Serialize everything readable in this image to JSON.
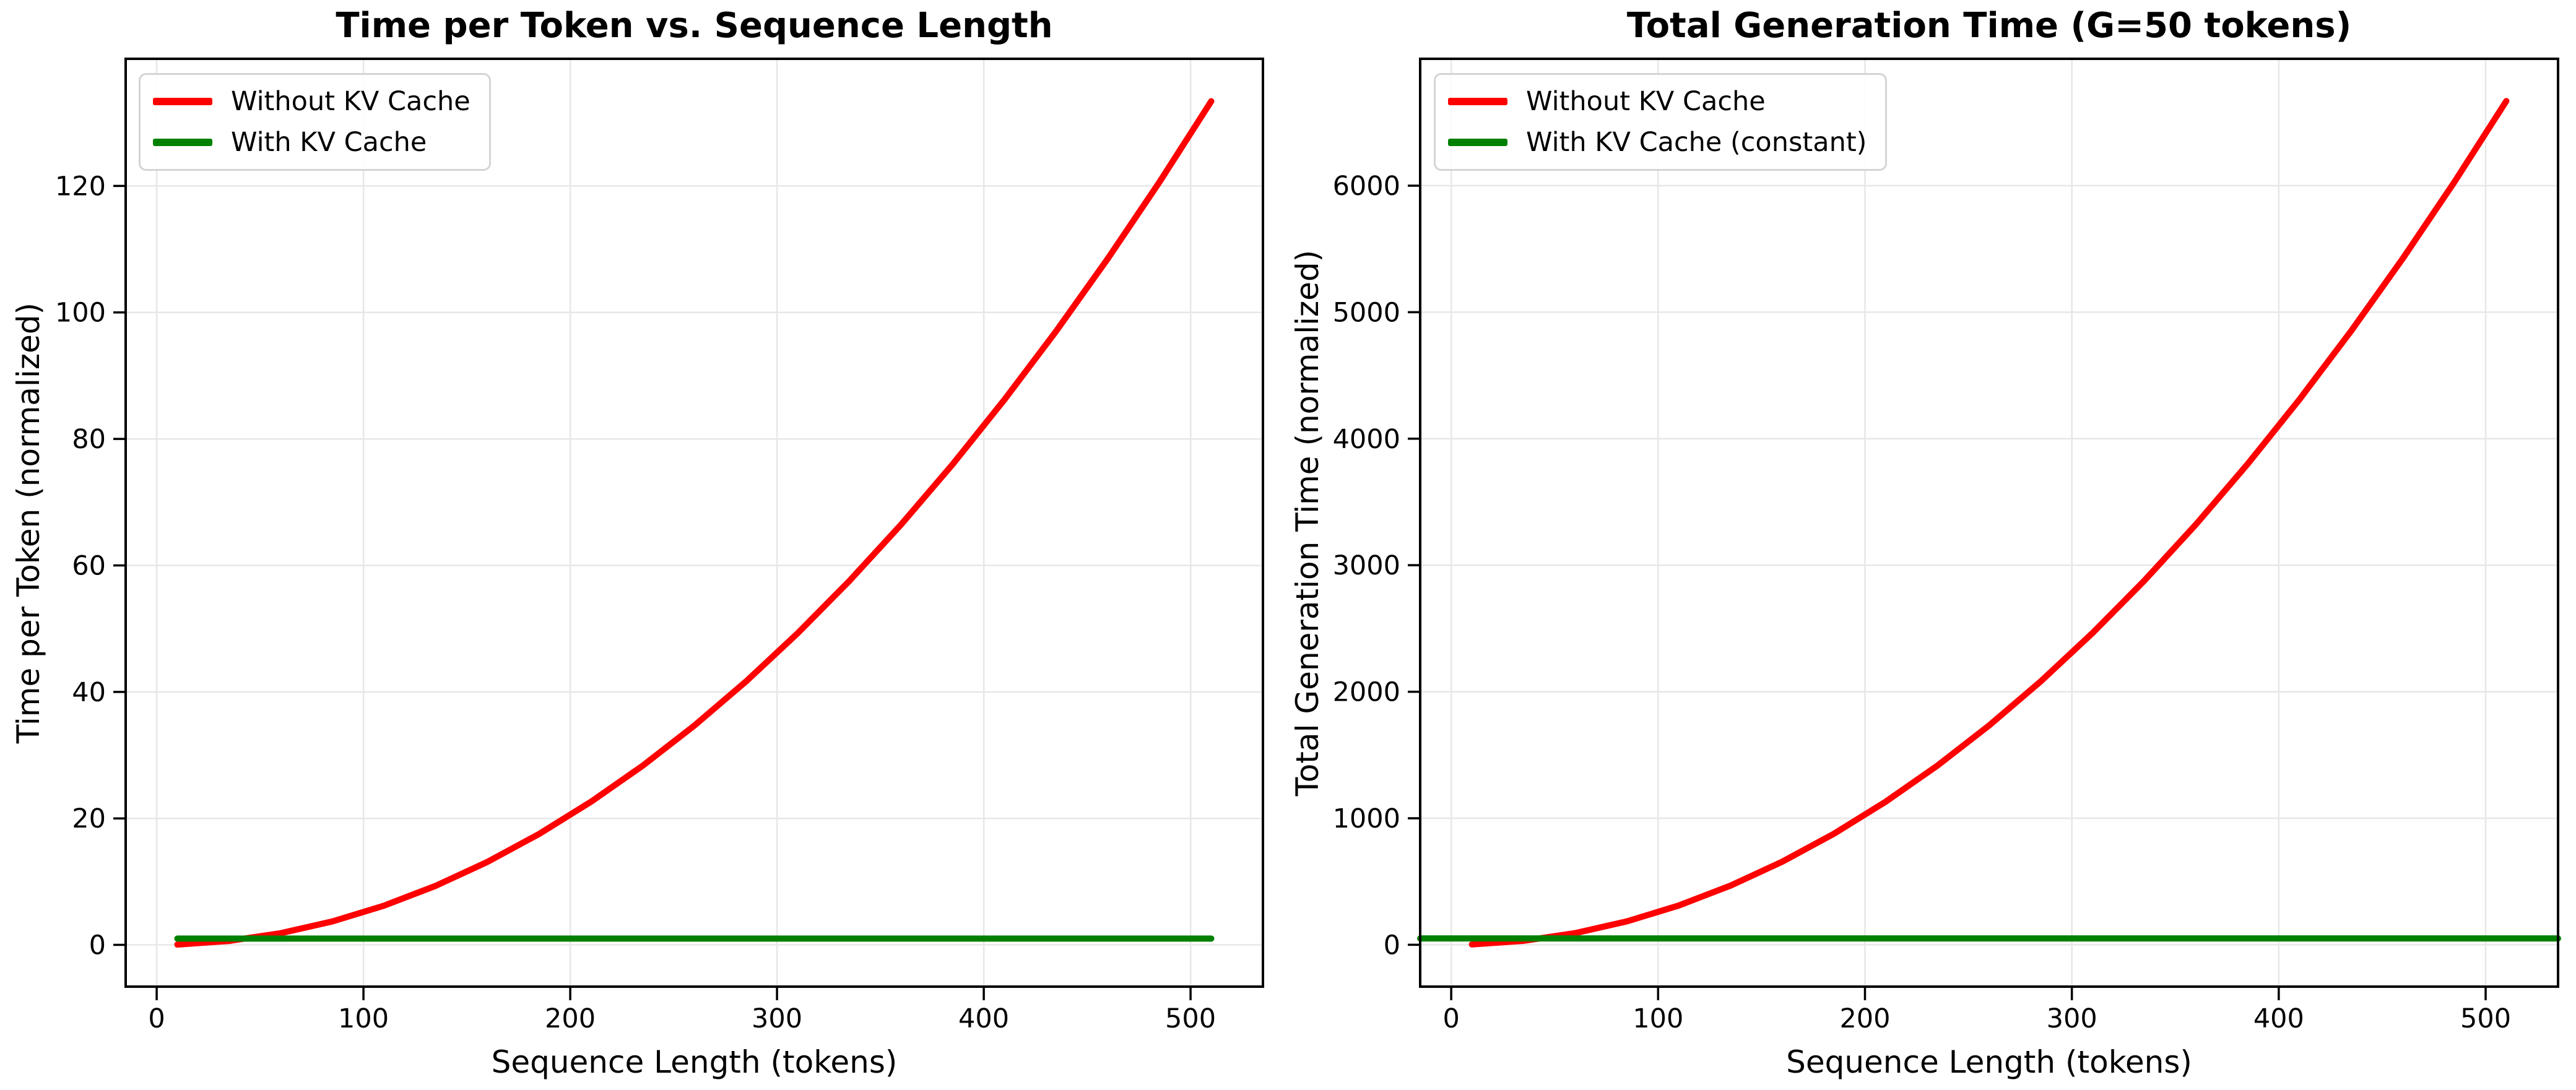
{
  "figure": {
    "background": "#ffffff"
  },
  "colors": {
    "without_kv": "#ff0000",
    "with_kv": "#008000",
    "grid": "#e7e7e7",
    "spine": "#000000",
    "text": "#000000",
    "legend_border": "#d4d4d4"
  },
  "chart_data": [
    {
      "type": "line",
      "title": "Time per Token vs. Sequence Length",
      "xlabel": "Sequence Length (tokens)",
      "ylabel": "Time per Token (normalized)",
      "x": [
        10,
        35,
        60,
        85,
        110,
        135,
        160,
        185,
        210,
        235,
        260,
        285,
        310,
        335,
        360,
        385,
        410,
        435,
        460,
        485,
        510
      ],
      "series": [
        {
          "name": "Without KV Cache",
          "color": "#ff0000",
          "values": [
            0.05,
            0.63,
            1.85,
            3.71,
            6.21,
            9.35,
            13.13,
            17.55,
            22.62,
            28.32,
            34.67,
            41.65,
            49.28,
            57.55,
            66.46,
            76.01,
            86.21,
            97.04,
            108.52,
            120.63,
            133.39
          ]
        },
        {
          "name": "With KV Cache",
          "color": "#008000",
          "constant": 1.0,
          "span": "data"
        }
      ],
      "x_ticks": [
        0,
        100,
        200,
        300,
        400,
        500
      ],
      "y_ticks": [
        0,
        20,
        40,
        60,
        80,
        100,
        120
      ],
      "xlim": [
        -15,
        535
      ],
      "ylim": [
        -6.6,
        140.1
      ],
      "grid": true,
      "legend_position": "upper left"
    },
    {
      "type": "line",
      "title": "Total Generation Time (G=50 tokens)",
      "xlabel": "Sequence Length (tokens)",
      "ylabel": "Total Generation Time (normalized)",
      "x": [
        10,
        35,
        60,
        85,
        110,
        135,
        160,
        185,
        210,
        235,
        260,
        285,
        310,
        335,
        360,
        385,
        410,
        435,
        460,
        485,
        510
      ],
      "series": [
        {
          "name": "Without KV Cache",
          "color": "#ff0000",
          "values": [
            2.6,
            31.4,
            92.3,
            185.3,
            310.3,
            467.3,
            656.4,
            877.6,
            1130.8,
            1416.0,
            1733.3,
            2082.7,
            2464.1,
            2877.6,
            3323.1,
            3800.6,
            4310.3,
            4851.9,
            5425.6,
            6031.4,
            6669.2
          ]
        },
        {
          "name": "With KV Cache (constant)",
          "color": "#008000",
          "constant": 50,
          "span": "axes"
        }
      ],
      "x_ticks": [
        0,
        100,
        200,
        300,
        400,
        500
      ],
      "y_ticks": [
        0,
        1000,
        2000,
        3000,
        4000,
        5000,
        6000
      ],
      "xlim": [
        -15,
        535
      ],
      "ylim": [
        -331,
        7003
      ],
      "grid": true,
      "legend_position": "upper left"
    }
  ]
}
